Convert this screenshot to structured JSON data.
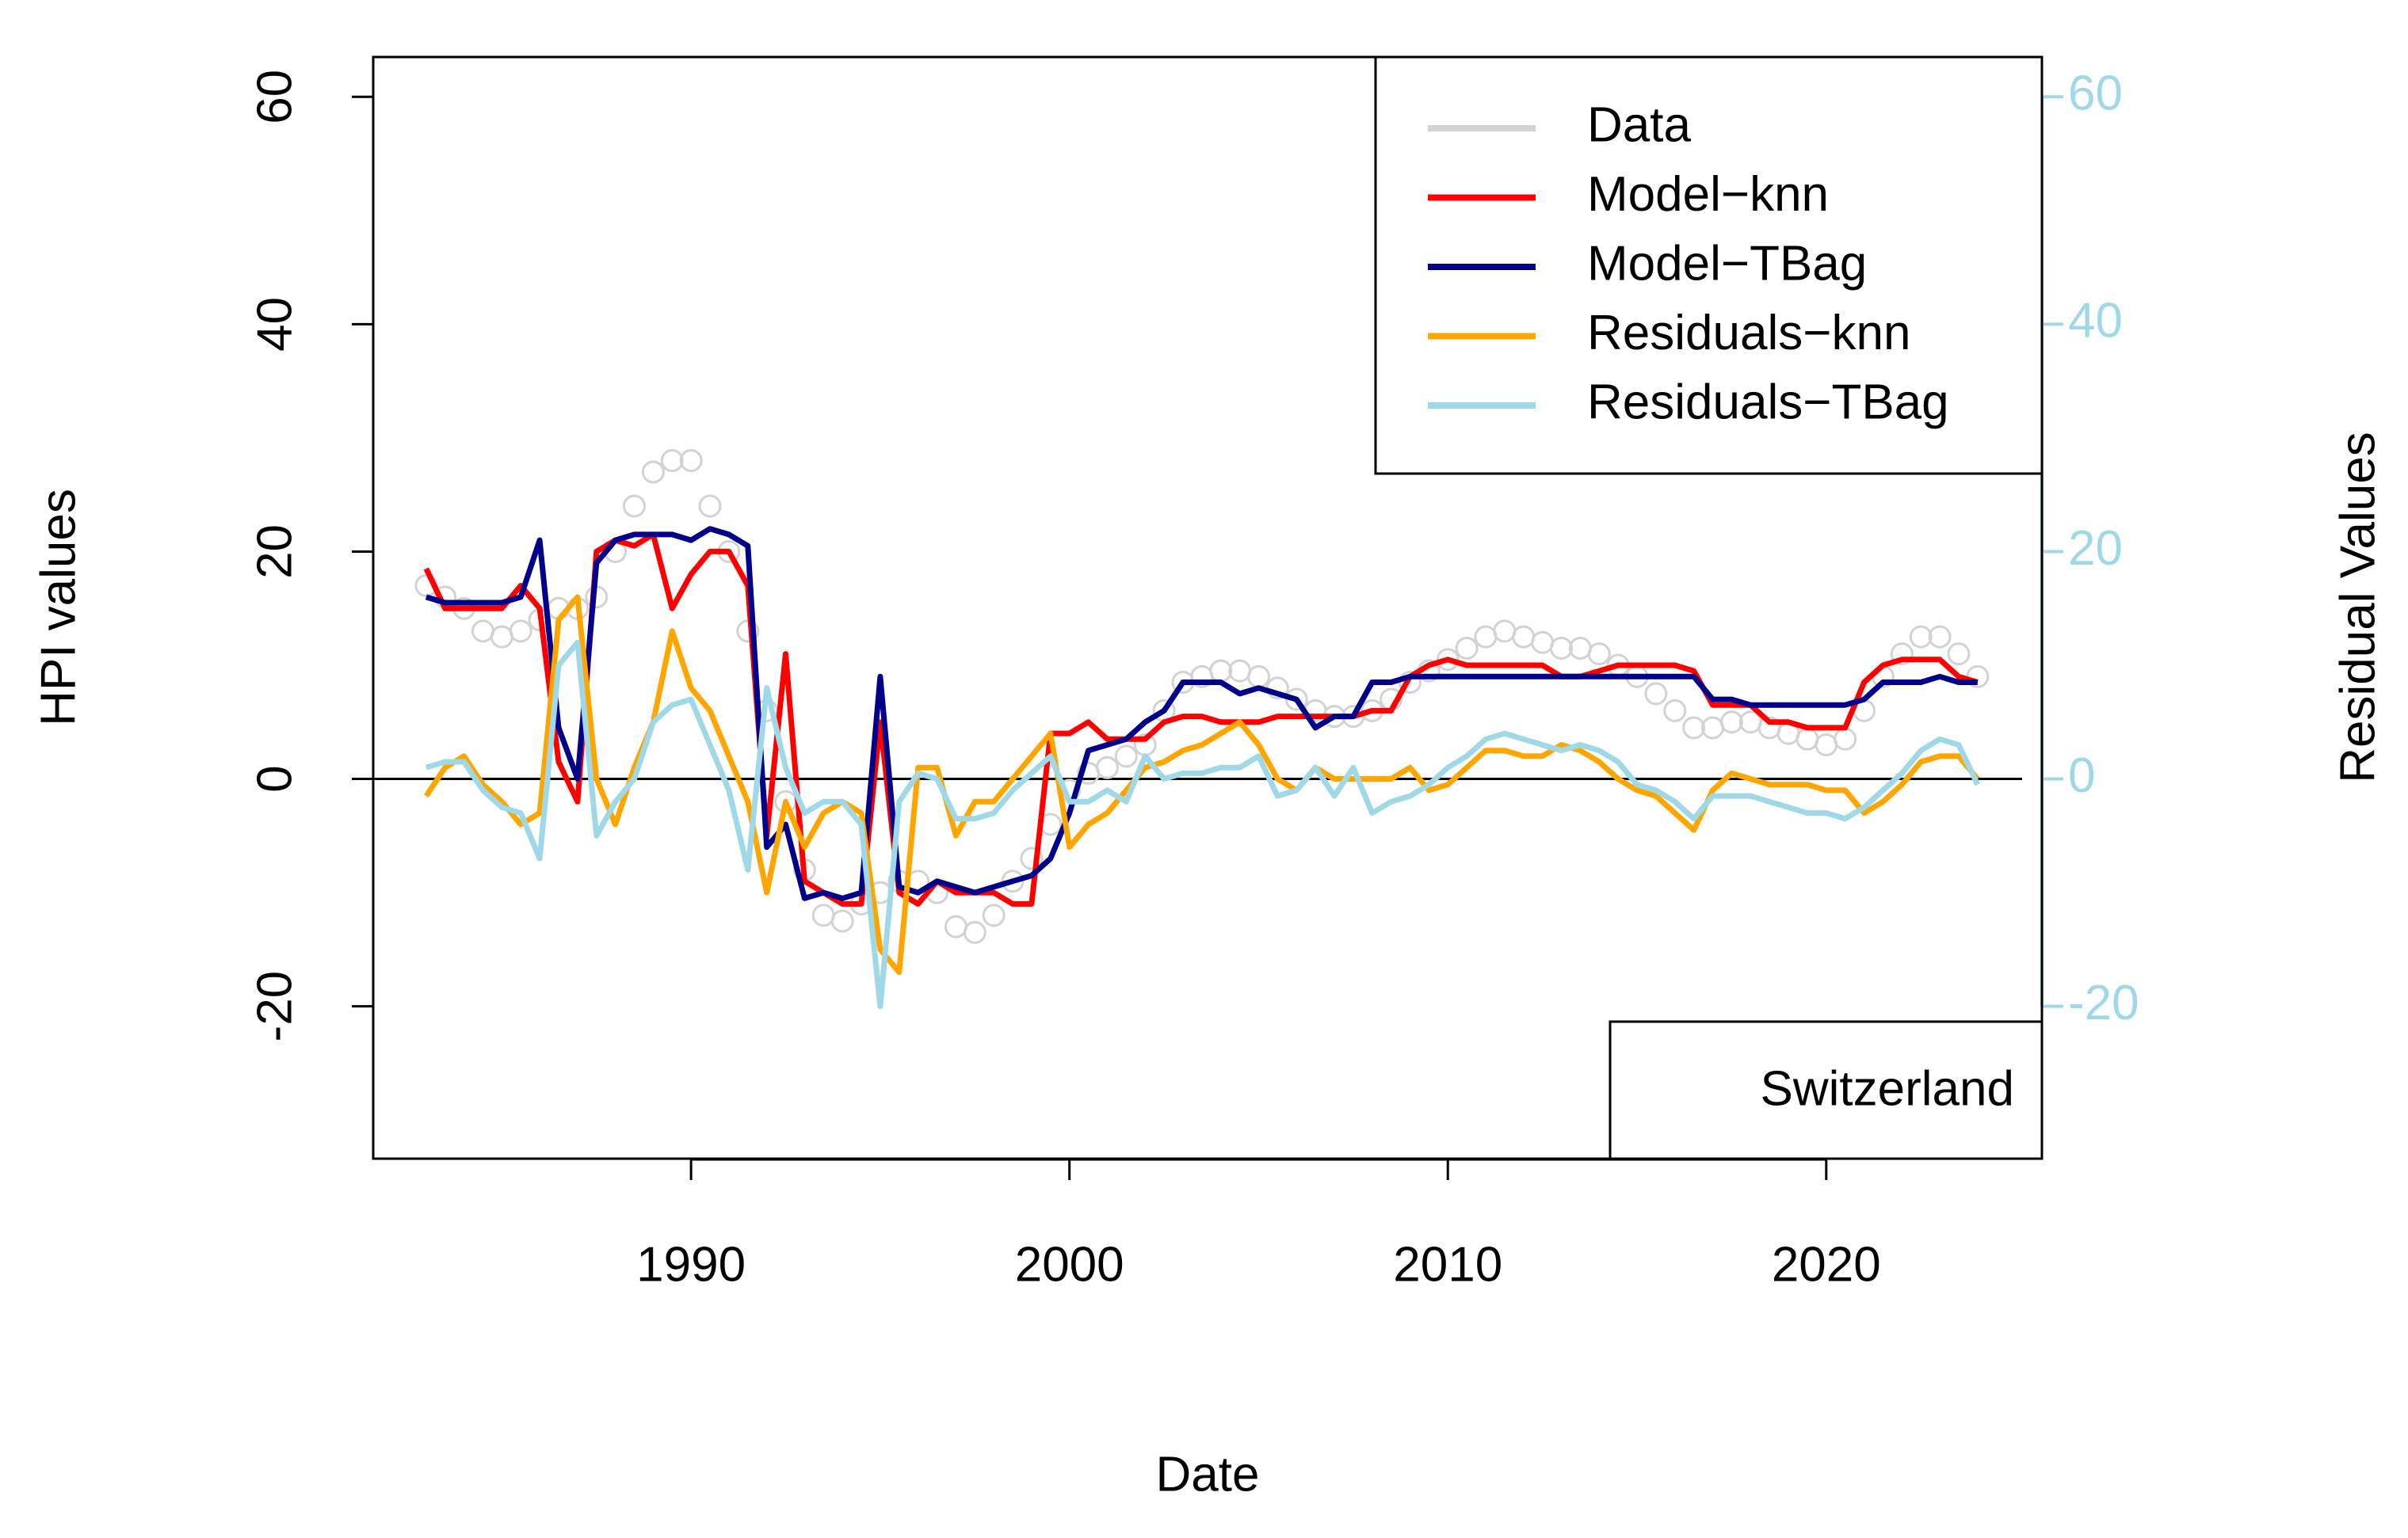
{
  "chart_data": {
    "type": "line",
    "xlabel": "Date",
    "ylabel": "HPI values",
    "y2label": "Residual Values",
    "annotation": "Switzerland",
    "reference_line": 0,
    "xlim": [
      1981.6,
      2025.7
    ],
    "xticks": [
      1990,
      2000,
      2010,
      2020
    ],
    "ylim": [
      -33.4,
      63.5
    ],
    "yticks": [
      -20,
      0,
      20,
      40,
      60
    ],
    "y2lim": [
      -33.4,
      63.5
    ],
    "y2ticks": [
      -20,
      0,
      20,
      40,
      60
    ],
    "y2color": "#9fd8e6",
    "legend": "topright",
    "x": [
      1983,
      1983.5,
      1984,
      1984.5,
      1985,
      1985.5,
      1986,
      1986.5,
      1987,
      1987.5,
      1988,
      1988.5,
      1989,
      1989.5,
      1990,
      1990.5,
      1991,
      1991.5,
      1992,
      1992.5,
      1993,
      1993.5,
      1994,
      1994.5,
      1995,
      1995.5,
      1996,
      1996.5,
      1997,
      1997.5,
      1998,
      1998.5,
      1999,
      1999.5,
      2000,
      2000.5,
      2001,
      2001.5,
      2002,
      2002.5,
      2003,
      2003.5,
      2004,
      2004.5,
      2005,
      2005.5,
      2006,
      2006.5,
      2007,
      2007.5,
      2008,
      2008.5,
      2009,
      2009.5,
      2010,
      2010.5,
      2011,
      2011.5,
      2012,
      2012.5,
      2013,
      2013.5,
      2014,
      2014.5,
      2015,
      2015.5,
      2016,
      2016.5,
      2017,
      2017.5,
      2018,
      2018.5,
      2019,
      2019.5,
      2020,
      2020.5,
      2021,
      2021.5,
      2022,
      2022.5,
      2023,
      2023.5,
      2024
    ],
    "series": [
      {
        "name": "Data",
        "color": "#d3d3d3",
        "marker": "circle",
        "values": [
          17,
          16,
          15,
          13,
          12.5,
          13,
          14,
          15,
          15,
          16,
          20,
          24,
          27,
          28,
          28,
          24,
          20,
          13,
          6,
          -2,
          -8,
          -12,
          -12.5,
          -11,
          -10,
          -9,
          -9,
          -10,
          -13,
          -13.5,
          -12,
          -9,
          -7,
          -4,
          -1,
          0.5,
          1,
          2,
          3,
          6,
          8.5,
          9,
          9.5,
          9.5,
          9,
          8,
          7,
          6,
          5.5,
          5.5,
          6,
          7,
          8.5,
          9.5,
          10.5,
          11.5,
          12.5,
          13,
          12.5,
          12,
          11.5,
          11.5,
          11,
          10,
          9,
          7.5,
          6,
          4.5,
          4.5,
          5,
          5,
          4.5,
          4,
          3.5,
          3,
          3.5,
          6,
          9,
          11,
          12.5,
          12.5,
          11,
          9
        ]
      },
      {
        "name": "Model−knn",
        "color": "#ff0000",
        "values": [
          18.5,
          15,
          15,
          15,
          15,
          17,
          15,
          1.5,
          -2,
          20,
          21,
          20.5,
          21.5,
          15,
          18,
          20,
          20,
          17,
          -5,
          11,
          -9,
          -10,
          -11,
          -11,
          5,
          -10,
          -11,
          -9,
          -10,
          -10,
          -10,
          -11,
          -11,
          4,
          4,
          5,
          3.5,
          3.5,
          3.5,
          5,
          5.5,
          5.5,
          5,
          5,
          5,
          5.5,
          5.5,
          5.5,
          5.5,
          5.5,
          6,
          6,
          9,
          10,
          10.5,
          10,
          10,
          10,
          10,
          10,
          9,
          9,
          9.5,
          10,
          10,
          10,
          10,
          9.5,
          6.5,
          6.5,
          6.5,
          5,
          5,
          4.5,
          4.5,
          4.5,
          8.5,
          10,
          10.5,
          10.5,
          10.5,
          9,
          8.5
        ]
      },
      {
        "name": "Model−TBag",
        "color": "#00008b",
        "values": [
          16,
          15.5,
          15.5,
          15.5,
          15.5,
          16,
          21,
          4.5,
          0,
          19,
          21,
          21.5,
          21.5,
          21.5,
          21,
          22,
          21.5,
          20.5,
          -6,
          -4,
          -10.5,
          -10,
          -10.5,
          -10,
          9,
          -9.5,
          -10,
          -9,
          -9.5,
          -10,
          -9.5,
          -9,
          -8.5,
          -7,
          -3,
          2.5,
          3,
          3.5,
          5,
          6,
          8.5,
          8.5,
          8.5,
          7.5,
          8,
          7.5,
          7,
          4.5,
          5.5,
          5.5,
          8.5,
          8.5,
          9,
          9,
          9,
          9,
          9,
          9,
          9,
          9,
          9,
          9,
          9,
          9,
          9,
          9,
          9,
          9,
          7,
          7,
          6.5,
          6.5,
          6.5,
          6.5,
          6.5,
          6.5,
          7,
          8.5,
          8.5,
          8.5,
          9,
          8.5,
          8.5
        ]
      },
      {
        "name": "Residuals−knn",
        "color": "#ffa500",
        "axis": "y2",
        "values": [
          -1.5,
          1,
          2,
          -0.5,
          -2,
          -4,
          -3,
          14,
          16,
          0,
          -4,
          1,
          5,
          13,
          8,
          6,
          2,
          -2,
          -10,
          -2,
          -6,
          -3,
          -2,
          -3,
          -15,
          -17,
          1,
          1,
          -5,
          -2,
          -2,
          0,
          2,
          4,
          -6,
          -4,
          -3,
          -1,
          1,
          1.5,
          2.5,
          3,
          4,
          5,
          3,
          0,
          -1,
          1,
          0,
          0,
          0,
          0,
          1,
          -1,
          -0.5,
          1,
          2.5,
          2.5,
          2,
          2,
          3,
          2.5,
          1.5,
          0,
          -1,
          -1.5,
          -3,
          -4.5,
          -1,
          0.5,
          0,
          -0.5,
          -0.5,
          -0.5,
          -1,
          -1,
          -3,
          -2,
          -0.5,
          1.5,
          2,
          2,
          0
        ]
      },
      {
        "name": "Residuals−TBag",
        "color": "#9fd8e6",
        "axis": "y2",
        "values": [
          1,
          1.5,
          1.5,
          -1,
          -2.5,
          -3,
          -7,
          10,
          12,
          -5,
          -2,
          0,
          5,
          6.5,
          7,
          3,
          -1,
          -8,
          8,
          1,
          -3,
          -2,
          -2,
          -4,
          -20,
          -2,
          0.5,
          0,
          -3.5,
          -3.5,
          -3,
          -1,
          0.5,
          2,
          -2,
          -2,
          -1,
          -2,
          2,
          0,
          0.5,
          0.5,
          1,
          1,
          2,
          -1.5,
          -1,
          1,
          -1.5,
          1,
          -3,
          -2,
          -1.5,
          -0.5,
          1,
          2,
          3.5,
          4,
          3.5,
          3,
          2.5,
          3,
          2.5,
          1.5,
          -0.5,
          -1,
          -2,
          -3.5,
          -1.5,
          -1.5,
          -1.5,
          -2,
          -2.5,
          -3,
          -3,
          -3.5,
          -2.5,
          -1,
          0.5,
          2.5,
          3.5,
          3,
          -0.5
        ]
      }
    ]
  }
}
